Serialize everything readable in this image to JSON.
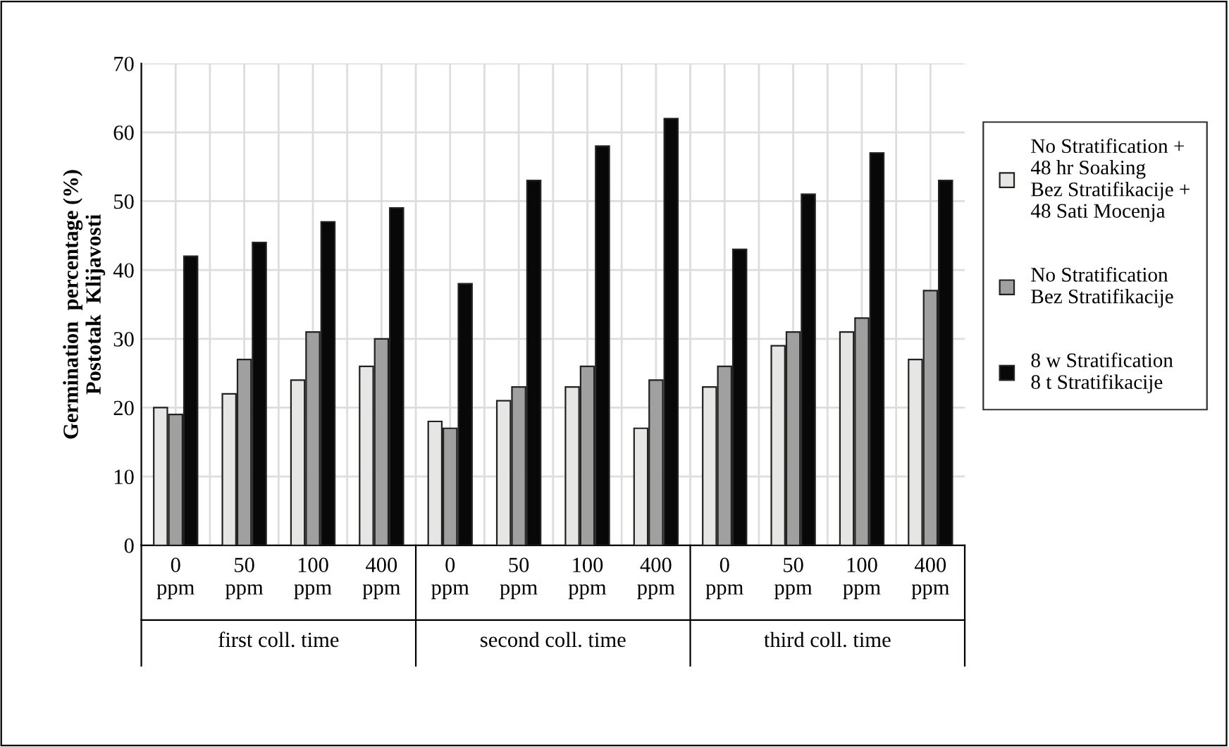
{
  "chart_data": {
    "type": "bar",
    "ylabel": "Germination  percentage (%)\nPostotak  Klijavosti",
    "categories": [
      "0\nppm",
      "50\nppm",
      "100\nppm",
      "400\nppm",
      "0\nppm",
      "50\nppm",
      "100\nppm",
      "400\nppm",
      "0\nppm",
      "50\nppm",
      "100\nppm",
      "400\nppm"
    ],
    "series": [
      {
        "name": "No Stratification +\n48 hr Soaking\nBez Stratifikacije +\n48 Sati Mocenja",
        "color": "#e6e6e4",
        "values": [
          20,
          22,
          24,
          26,
          18,
          21,
          23,
          17,
          23,
          29,
          31,
          27
        ]
      },
      {
        "name": "No Stratification\nBez Stratifikacije",
        "color": "#a0a0a0",
        "values": [
          19,
          27,
          31,
          30,
          17,
          23,
          26,
          24,
          26,
          31,
          33,
          37
        ]
      },
      {
        "name": "8 w Stratification\n8 t Stratifikacije",
        "color": "#080808",
        "values": [
          42,
          44,
          47,
          49,
          38,
          53,
          58,
          62,
          43,
          51,
          57,
          53
        ]
      }
    ],
    "annotations": [
      "first coll. time",
      "second coll. time",
      "third coll. time"
    ],
    "ylim": [
      0,
      70
    ],
    "yticks": [
      0,
      10,
      20,
      30,
      40,
      50,
      60,
      70
    ],
    "grid": true,
    "legend": "right"
  }
}
